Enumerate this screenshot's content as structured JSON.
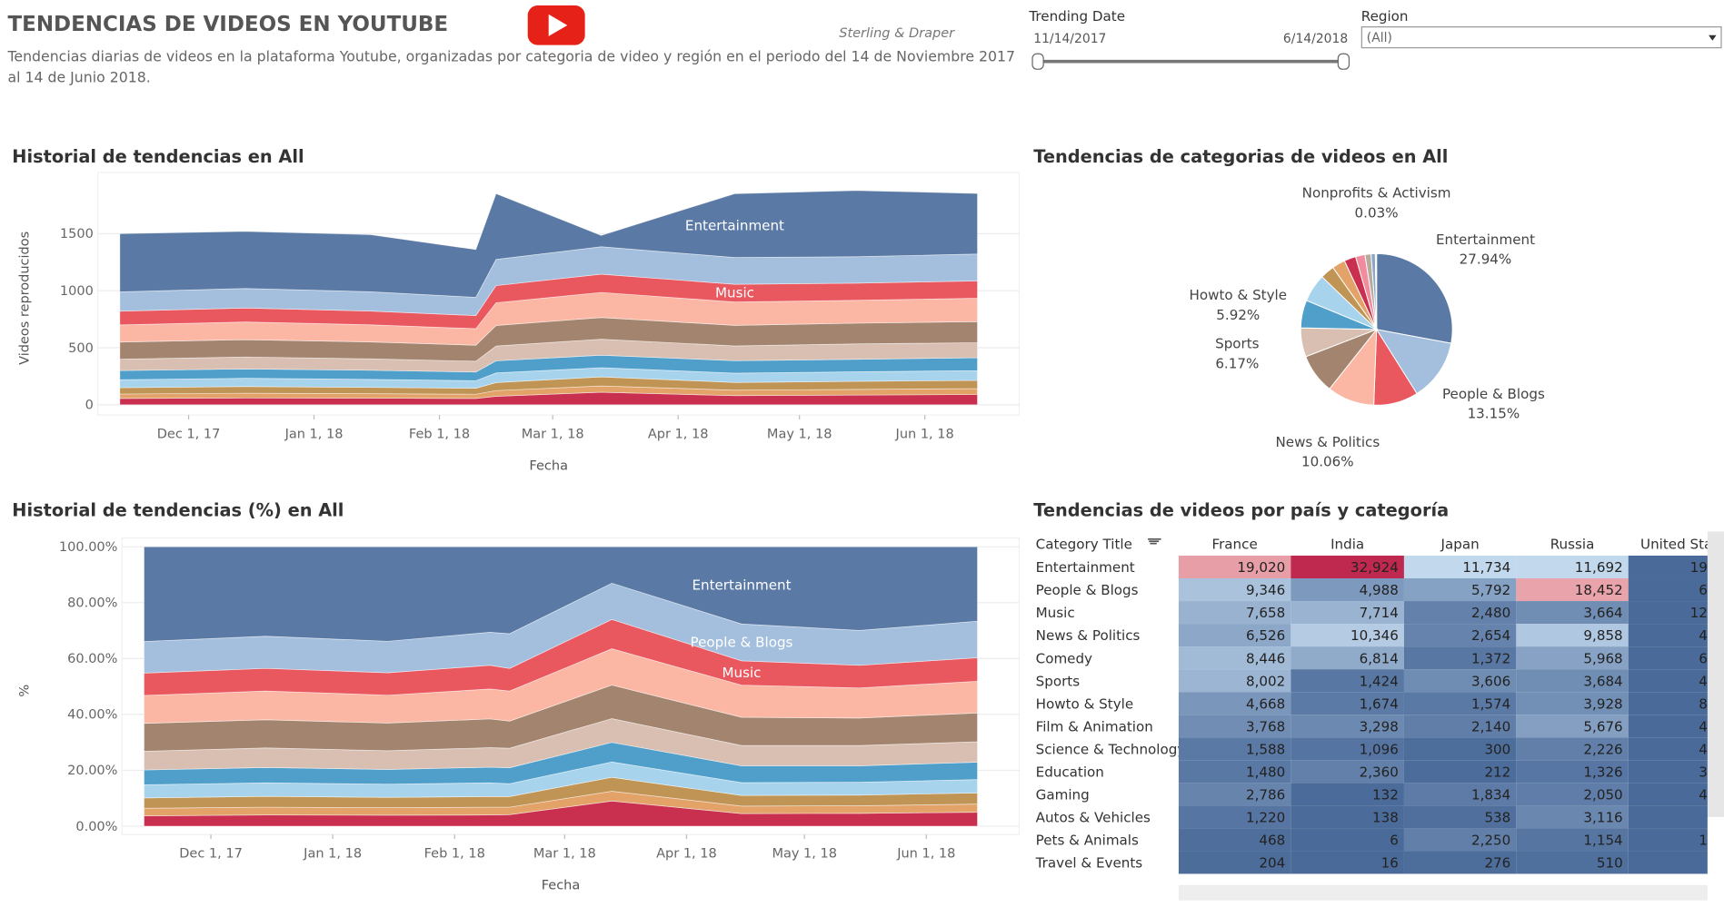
{
  "header": {
    "title": "TENDENCIAS DE VIDEOS EN YOUTUBE",
    "subtitle": "Tendencias diarias de videos en la plataforma Youtube, organizadas por categoria de video y región en el periodo del 14 de Noviembre 2017 al 14 de Junio 2018.",
    "credit": "Sterling & Draper"
  },
  "filters": {
    "trending_date": {
      "label": "Trending Date",
      "start": "11/14/2017",
      "end": "6/14/2018"
    },
    "region": {
      "label": "Region",
      "value": "(All)"
    }
  },
  "chart_data": [
    {
      "type": "stacked_area",
      "title": "Historial de tendencias en All",
      "x_label": "Fecha",
      "y_label": "Videos reproducidos",
      "x": [
        "2017-11-14",
        "2017-12-15",
        "2018-01-15",
        "2018-02-10",
        "2018-02-15",
        "2018-03-13",
        "2018-04-15",
        "2018-05-15",
        "2018-06-14"
      ],
      "xlim": [
        "2017-11-14",
        "2018-06-14"
      ],
      "xticks": [
        {
          "value": "2017-12-01",
          "label": "Dec 1, 17"
        },
        {
          "value": "2018-01-01",
          "label": "Jan 1, 18"
        },
        {
          "value": "2018-02-01",
          "label": "Feb 1, 18"
        },
        {
          "value": "2018-03-01",
          "label": "Mar 1, 18"
        },
        {
          "value": "2018-04-01",
          "label": "Apr 1, 18"
        },
        {
          "value": "2018-05-01",
          "label": "May 1, 18"
        },
        {
          "value": "2018-06-01",
          "label": "Jun 1, 18"
        }
      ],
      "ylim": [
        -90,
        1960
      ],
      "yticks": [
        0,
        500,
        1000,
        1500
      ],
      "grid": true,
      "series": [
        {
          "color": "#c9304f",
          "values": [
            55,
            60,
            58,
            55,
            75,
            110,
            80,
            85,
            90
          ]
        },
        {
          "color": "#e2a268",
          "values": [
            40,
            42,
            40,
            38,
            50,
            55,
            48,
            50,
            52
          ]
        },
        {
          "color": "#bf9455",
          "values": [
            55,
            58,
            55,
            52,
            70,
            80,
            68,
            70,
            72
          ]
        },
        {
          "color": "#a7d3ec",
          "values": [
            70,
            72,
            70,
            66,
            85,
            80,
            82,
            84,
            86
          ]
        },
        {
          "color": "#4f9fca",
          "values": [
            80,
            82,
            80,
            76,
            105,
            110,
            108,
            110,
            112
          ]
        },
        {
          "color": "#d9bfb2",
          "values": [
            100,
            105,
            100,
            95,
            130,
            140,
            130,
            135,
            132
          ]
        },
        {
          "color": "#a3856f",
          "values": [
            150,
            152,
            148,
            140,
            180,
            190,
            180,
            182,
            185
          ]
        },
        {
          "color": "#fcb7a4",
          "values": [
            150,
            155,
            150,
            145,
            200,
            220,
            205,
            200,
            205
          ]
        },
        {
          "name": "Music",
          "color": "#e9575f",
          "values": [
            120,
            122,
            120,
            115,
            150,
            160,
            155,
            150,
            152
          ]
        },
        {
          "color": "#a3bfdd",
          "values": [
            170,
            172,
            170,
            160,
            230,
            240,
            235,
            232,
            236
          ]
        },
        {
          "name": "Entertainment",
          "color": "#5a79a5",
          "values": [
            510,
            500,
            500,
            418,
            575,
            100,
            559,
            580,
            530
          ]
        }
      ]
    },
    {
      "type": "pie",
      "title": "Tendencias de categorias de videos en All",
      "categories": [
        "Entertainment",
        "People & Blogs",
        null,
        "News & Politics",
        null,
        "Sports",
        "Howto & Style",
        null,
        null,
        null,
        null,
        null,
        null,
        null,
        null,
        "Nonprofits & Activism"
      ],
      "values": [
        27.94,
        13.15,
        9.5,
        10.06,
        8.5,
        6.17,
        5.92,
        6,
        3,
        2.8,
        2.5,
        2,
        1.3,
        0.9,
        0.23,
        0.03
      ],
      "value_labels": [
        "27.94%",
        "13.15%",
        null,
        "10.06%",
        null,
        "6.17%",
        "5.92%",
        null,
        null,
        null,
        null,
        null,
        null,
        null,
        null,
        "0.03%"
      ],
      "colors": [
        "#5a79a5",
        "#a3bfdd",
        "#e9575f",
        "#fcb7a4",
        "#a3856f",
        "#d9bfb2",
        "#4f9fca",
        "#a7d3ec",
        "#bf9455",
        "#e2a268",
        "#c9304f",
        "#f08c9e",
        "#b7ab9f",
        "#8aa6c8",
        "#9cc9a0",
        "#e88a8a"
      ]
    },
    {
      "type": "stacked_area",
      "title": "Historial de tendencias (%) en All",
      "x_label": "Fecha",
      "y_label": "%",
      "x": [
        "2017-11-14",
        "2017-12-15",
        "2018-01-15",
        "2018-02-10",
        "2018-02-15",
        "2018-03-13",
        "2018-04-15",
        "2018-05-15",
        "2018-06-14"
      ],
      "xlim": [
        "2017-11-14",
        "2018-06-14"
      ],
      "xticks": [
        {
          "value": "2017-12-01",
          "label": "Dec 1, 17"
        },
        {
          "value": "2018-01-01",
          "label": "Jan 1, 18"
        },
        {
          "value": "2018-02-01",
          "label": "Feb 1, 18"
        },
        {
          "value": "2018-03-01",
          "label": "Mar 1, 18"
        },
        {
          "value": "2018-04-01",
          "label": "Apr 1, 18"
        },
        {
          "value": "2018-05-01",
          "label": "May 1, 18"
        },
        {
          "value": "2018-06-01",
          "label": "Jun 1, 18"
        }
      ],
      "ylim": [
        -3,
        100
      ],
      "yticks": [
        {
          "value": 0,
          "label": "0.00%"
        },
        {
          "value": 20,
          "label": "20.00%"
        },
        {
          "value": 40,
          "label": "40.00%"
        },
        {
          "value": 60,
          "label": "60.00%"
        },
        {
          "value": 80,
          "label": "80.00%"
        },
        {
          "value": 100,
          "label": "100.00%"
        }
      ],
      "grid": true,
      "series": [
        {
          "color": "#c9304f",
          "values": [
            3.7,
            4.0,
            3.9,
            4.0,
            4.1,
            9.0,
            4.5,
            4.6,
            5.0
          ]
        },
        {
          "color": "#e2a268",
          "values": [
            2.7,
            2.8,
            2.7,
            2.8,
            2.7,
            3.5,
            2.7,
            2.7,
            2.9
          ]
        },
        {
          "color": "#bf9455",
          "values": [
            3.7,
            3.9,
            3.7,
            3.8,
            3.8,
            5.0,
            3.8,
            3.8,
            4.0
          ]
        },
        {
          "color": "#a7d3ec",
          "values": [
            4.7,
            4.8,
            4.7,
            4.9,
            4.6,
            5.5,
            4.6,
            4.6,
            4.8
          ]
        },
        {
          "color": "#4f9fca",
          "values": [
            5.3,
            5.5,
            5.3,
            5.6,
            5.7,
            7.0,
            6.0,
            5.9,
            6.2
          ]
        },
        {
          "color": "#d9bfb2",
          "values": [
            6.7,
            7.0,
            6.7,
            7.0,
            7.0,
            8.5,
            7.3,
            7.3,
            7.3
          ]
        },
        {
          "color": "#a3856f",
          "values": [
            10.0,
            10.1,
            9.9,
            10.3,
            9.7,
            12.0,
            10.1,
            9.8,
            10.3
          ]
        },
        {
          "color": "#fcb7a4",
          "values": [
            10.0,
            10.3,
            10.0,
            10.7,
            10.8,
            13.0,
            11.5,
            10.8,
            11.4
          ]
        },
        {
          "name": "Music",
          "color": "#e9575f",
          "values": [
            8.0,
            8.1,
            8.0,
            8.5,
            8.1,
            10.5,
            8.7,
            8.1,
            8.4
          ]
        },
        {
          "name": "People & Blogs",
          "color": "#a3bfdd",
          "values": [
            11.3,
            11.5,
            11.3,
            11.8,
            12.4,
            13.0,
            13.2,
            12.5,
            13.1
          ]
        },
        {
          "name": "Entertainment",
          "color": "#5a79a5",
          "values": [
            33.9,
            32.0,
            33.8,
            30.6,
            31.1,
            13.0,
            27.6,
            29.9,
            26.6
          ]
        }
      ]
    }
  ],
  "table": {
    "title": "Tendencias de videos por país y categoría",
    "columns": [
      "Category Title",
      "France",
      "India",
      "Japan",
      "Russia",
      "United Sta"
    ],
    "rows": [
      [
        "Entertainment",
        "19,020",
        "32,924",
        "11,734",
        "11,692",
        "19"
      ],
      [
        "People & Blogs",
        "9,346",
        "4,988",
        "5,792",
        "18,452",
        "6"
      ],
      [
        "Music",
        "7,658",
        "7,714",
        "2,480",
        "3,664",
        "12"
      ],
      [
        "News & Politics",
        "6,526",
        "10,346",
        "2,654",
        "9,858",
        "4"
      ],
      [
        "Comedy",
        "8,446",
        "6,814",
        "1,372",
        "5,968",
        "6"
      ],
      [
        "Sports",
        "8,002",
        "1,424",
        "3,606",
        "3,684",
        "4"
      ],
      [
        "Howto & Style",
        "4,668",
        "1,674",
        "1,574",
        "3,928",
        "8"
      ],
      [
        "Film & Animation",
        "3,768",
        "3,298",
        "2,140",
        "5,676",
        "4"
      ],
      [
        "Science & Technology",
        "1,588",
        "1,096",
        "300",
        "2,226",
        "4"
      ],
      [
        "Education",
        "1,480",
        "2,360",
        "212",
        "1,326",
        "3"
      ],
      [
        "Gaming",
        "2,786",
        "132",
        "1,834",
        "2,050",
        "4"
      ],
      [
        "Autos & Vehicles",
        "1,220",
        "138",
        "538",
        "3,116",
        null
      ],
      [
        "Pets & Animals",
        "468",
        "6",
        "2,250",
        "1,154",
        "1"
      ],
      [
        "Travel & Events",
        "204",
        "16",
        "276",
        "510",
        null
      ]
    ]
  }
}
